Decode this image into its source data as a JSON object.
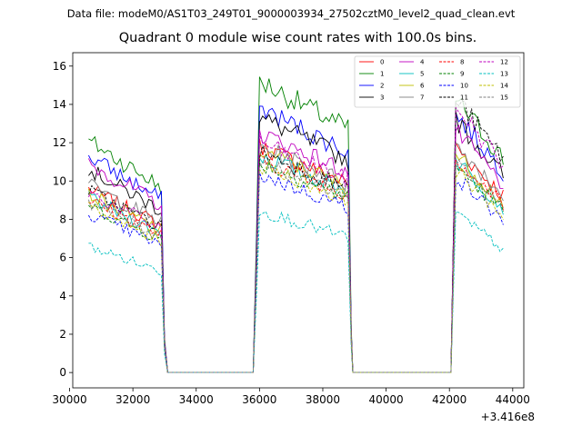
{
  "suptitle": "Data file: modeM0/AS1T03_249T01_9000003934_27502cztM0_level2_quad_clean.evt",
  "chart_data": {
    "type": "line",
    "title": "Quadrant 0 module wise count rates with 100.0s bins.",
    "xlabel": "",
    "ylabel": "",
    "x_offset_label": "+3.416e8",
    "xlim": [
      30100,
      44350
    ],
    "ylim": [
      -0.8,
      16.7
    ],
    "xticks": [
      30000,
      32000,
      34000,
      36000,
      38000,
      40000,
      42000,
      44000
    ],
    "xtick_labels": [
      "30000",
      "32000",
      "34000",
      "36000",
      "38000",
      "40000",
      "42000",
      "44000"
    ],
    "yticks": [
      0,
      2,
      4,
      6,
      8,
      10,
      12,
      14,
      16
    ],
    "ytick_labels": [
      "0",
      "2",
      "4",
      "6",
      "8",
      "10",
      "12",
      "14",
      "16"
    ],
    "legend_position": "top-right",
    "bin_size_s": 100,
    "segments": [
      {
        "x_start": 30600,
        "x_end": 32900
      },
      {
        "x_start": 35900,
        "x_end": 38800
      },
      {
        "x_start": 42200,
        "x_end": 43700
      }
    ],
    "zero_intervals": [
      {
        "x_start": 33100,
        "x_end": 35800
      },
      {
        "x_start": 38950,
        "x_end": 42050
      }
    ],
    "series": [
      {
        "name": "0",
        "color": "#ff0000",
        "dash": "solid",
        "levels": [
          9.6,
          11.9,
          11.8
        ]
      },
      {
        "name": "1",
        "color": "#008000",
        "dash": "solid",
        "levels": [
          12.1,
          15.3,
          14.3
        ]
      },
      {
        "name": "2",
        "color": "#0000ff",
        "dash": "solid",
        "levels": [
          11.3,
          13.9,
          13.5
        ]
      },
      {
        "name": "3",
        "color": "#000000",
        "dash": "solid",
        "levels": [
          10.6,
          13.4,
          13.2
        ]
      },
      {
        "name": "4",
        "color": "#bf00bf",
        "dash": "solid",
        "levels": [
          10.9,
          12.6,
          12.6
        ]
      },
      {
        "name": "5",
        "color": "#00bfbf",
        "dash": "solid",
        "levels": [
          9.1,
          11.4,
          11.1
        ]
      },
      {
        "name": "6",
        "color": "#bfbf00",
        "dash": "solid",
        "levels": [
          9.3,
          11.7,
          11.4
        ]
      },
      {
        "name": "7",
        "color": "#808080",
        "dash": "solid",
        "levels": [
          9.8,
          11.9,
          11.9
        ]
      },
      {
        "name": "8",
        "color": "#ff0000",
        "dash": "dashed",
        "levels": [
          9.0,
          11.2,
          11.2
        ]
      },
      {
        "name": "9",
        "color": "#008000",
        "dash": "dashed",
        "levels": [
          8.7,
          11.0,
          10.8
        ]
      },
      {
        "name": "10",
        "color": "#0000ff",
        "dash": "dashed",
        "levels": [
          8.3,
          10.4,
          10.2
        ]
      },
      {
        "name": "11",
        "color": "#000000",
        "dash": "dashed",
        "levels": [
          9.5,
          11.6,
          14.3
        ]
      },
      {
        "name": "12",
        "color": "#bf00bf",
        "dash": "dashed",
        "levels": [
          9.4,
          12.1,
          13.9
        ]
      },
      {
        "name": "13",
        "color": "#00bfbf",
        "dash": "dashed",
        "levels": [
          6.6,
          8.5,
          8.3
        ]
      },
      {
        "name": "14",
        "color": "#bfbf00",
        "dash": "dashed",
        "levels": [
          8.6,
          10.9,
          10.6
        ]
      },
      {
        "name": "15",
        "color": "#808080",
        "dash": "dashed",
        "levels": [
          8.9,
          11.1,
          11.1
        ]
      }
    ]
  }
}
